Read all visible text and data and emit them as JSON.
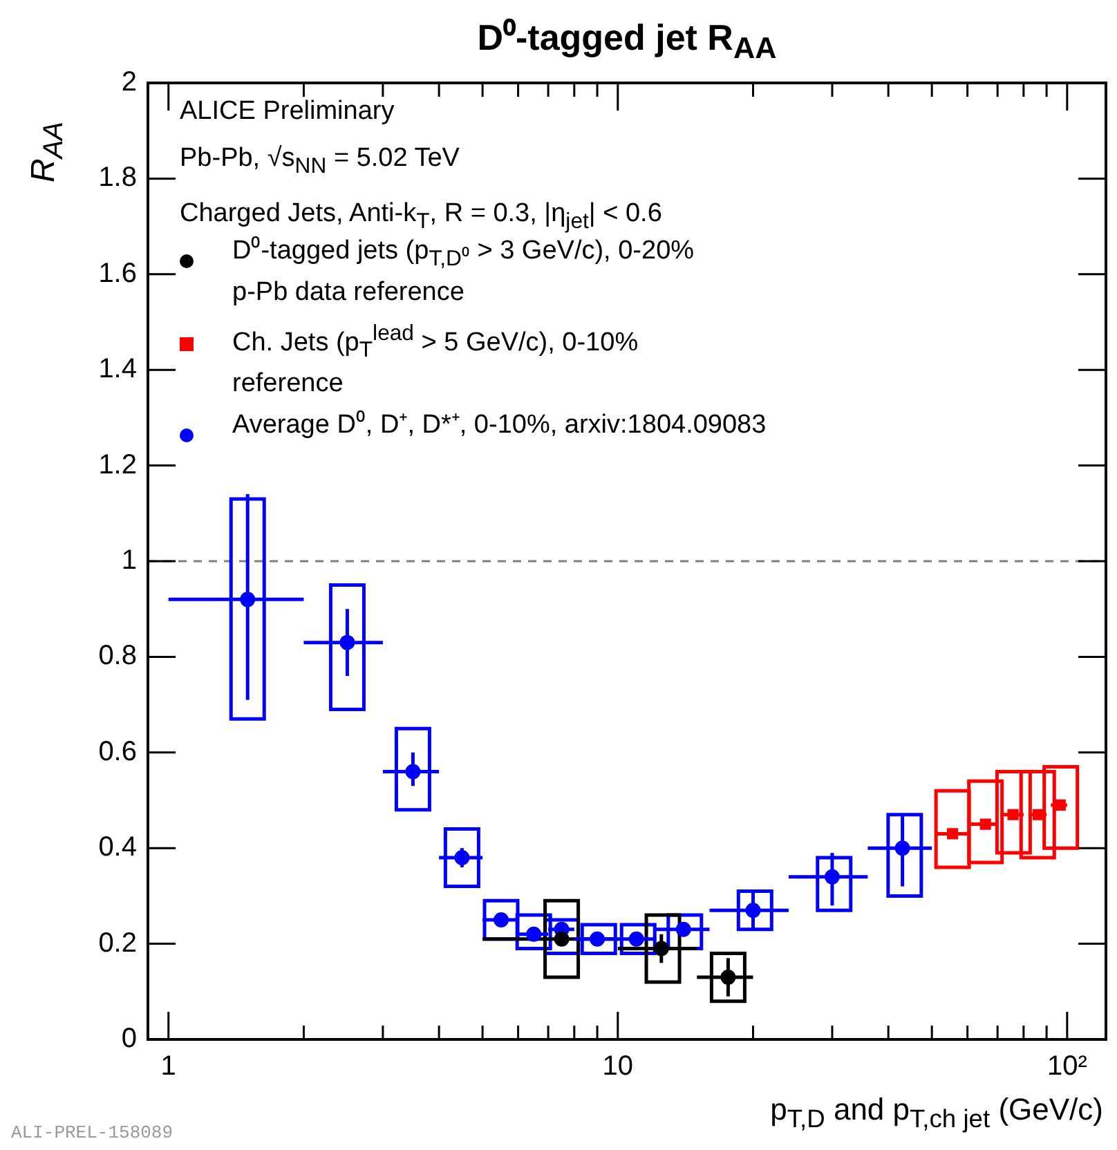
{
  "chart_data": {
    "type": "scatter",
    "title": "D⁰-tagged jet R$_{AA}$",
    "xlabel": "p$_{T,D}$ and p$_{T,ch jet}$ (GeV/c)",
    "ylabel": "R$_{AA}$",
    "annotations": [
      "ALICE Preliminary",
      "Pb-Pb, √s$_{NN}$ = 5.02 TeV",
      "Charged Jets, Anti-k$_{T}$, R = 0.3, |η$_{jet}$| < 0.6",
      "ALI-PREL-158089"
    ],
    "log": "x",
    "grid": false,
    "legend": "top left",
    "marker": "circle",
    "xlim": [
      0.9,
      122
    ],
    "xticks": [
      1,
      {
        "value": 2,
        "label": null
      },
      {
        "value": 3,
        "label": null
      },
      {
        "value": 4,
        "label": null
      },
      {
        "value": 5,
        "label": null
      },
      {
        "value": 6,
        "label": null
      },
      {
        "value": 7,
        "label": null
      },
      {
        "value": 8,
        "label": null
      },
      {
        "value": 9,
        "label": null
      },
      10,
      {
        "value": 20,
        "label": null
      },
      {
        "value": 30,
        "label": null
      },
      {
        "value": 40,
        "label": null
      },
      {
        "value": 50,
        "label": null
      },
      {
        "value": 60,
        "label": null
      },
      {
        "value": 70,
        "label": null
      },
      {
        "value": 80,
        "label": null
      },
      {
        "value": 90,
        "label": null
      },
      {
        "value": 100,
        "label": "10²"
      }
    ],
    "ylim": [
      0,
      2
    ],
    "yticks": [
      0,
      0.2,
      0.4,
      0.6,
      0.8,
      1,
      1.2,
      1.4,
      1.6,
      1.8,
      2
    ],
    "ref_lines": [
      {
        "axis": "y",
        "value": 1,
        "color": "#808080",
        "line_style": "dashed"
      }
    ],
    "series": [
      {
        "type": "bar",
        "color": "#0000ff",
        "x": [
          1.5,
          2.5,
          3.5,
          4.5,
          5.5,
          6.5,
          7.5,
          9.07,
          11.1,
          14.1,
          20.2,
          30.3,
          43.5
        ],
        "base": [
          0.67,
          0.69,
          0.48,
          0.32,
          0.21,
          0.19,
          0.18,
          0.18,
          0.18,
          0.19,
          0.23,
          0.27,
          0.3
        ],
        "values": [
          0.46,
          0.26,
          0.17,
          0.12,
          0.08,
          0.07,
          0.07,
          0.06,
          0.06,
          0.07,
          0.08,
          0.11,
          0.17
        ]
      },
      {
        "type": "bar",
        "color": "#000000",
        "x": [
          7.5,
          12.6,
          17.6
        ],
        "base": [
          0.13,
          0.12,
          0.08
        ],
        "values": [
          0.16,
          0.14,
          0.1
        ]
      },
      {
        "type": "bar",
        "color": "#ff0000",
        "x": [
          55.6,
          65.8,
          76,
          86,
          96.8
        ],
        "base": [
          0.36,
          0.37,
          0.39,
          0.38,
          0.4
        ],
        "values": [
          0.16,
          0.17,
          0.17,
          0.18,
          0.17
        ]
      },
      {
        "name": "D⁰-tagged jets (p$_{T,D⁰}$ > 3 GeV/c), 0-20%\np-Pb data reference",
        "color": "#000000",
        "x": [
          7.5,
          12.5,
          17.6
        ],
        "values": [
          0.21,
          0.19,
          0.13
        ],
        "errors": [
          null,
          [
            0.16,
            0.22
          ],
          [
            0.09,
            0.17
          ]
        ],
        "xerrors": [
          [
            5,
            10
          ],
          [
            10,
            15
          ],
          [
            15,
            20
          ]
        ]
      },
      {
        "name": "Ch. Jets (p$_{T}$$^{lead}$ > 5 GeV/c), 0-10%\nreference",
        "color": "#ff0000",
        "marker": "square",
        "x": [
          55.6,
          65.8,
          75.8,
          86.2,
          96.5
        ],
        "values": [
          0.43,
          0.45,
          0.47,
          0.47,
          0.49
        ],
        "xerrors": [
          [
            51,
            60
          ],
          [
            61,
            70
          ],
          [
            71,
            80
          ],
          [
            82,
            90
          ],
          [
            92,
            100
          ]
        ]
      },
      {
        "name": "Average D⁰, D⁺, D*⁺, 0-10%, arxiv:1804.09083",
        "color": "#0000ff",
        "x": [
          1.5,
          2.5,
          3.5,
          4.5,
          5.5,
          6.5,
          7.5,
          9,
          11,
          14,
          20,
          30,
          43
        ],
        "values": [
          0.92,
          0.83,
          0.56,
          0.38,
          0.25,
          0.22,
          0.23,
          0.21,
          0.21,
          0.23,
          0.27,
          0.34,
          0.4
        ],
        "errors": [
          [
            0.71,
            1.14
          ],
          [
            0.76,
            0.9
          ],
          [
            0.53,
            0.6
          ],
          [
            0.36,
            0.4
          ],
          null,
          null,
          null,
          null,
          null,
          null,
          [
            0.23,
            0.31
          ],
          [
            0.28,
            0.39
          ],
          [
            0.32,
            0.47
          ]
        ],
        "xerrors": [
          [
            1,
            2
          ],
          [
            2,
            3
          ],
          [
            3,
            4
          ],
          [
            4,
            5
          ],
          [
            5,
            6
          ],
          [
            6,
            7
          ],
          [
            7,
            8
          ],
          [
            8,
            10
          ],
          [
            10,
            12
          ],
          [
            12,
            16
          ],
          [
            16,
            24
          ],
          [
            24,
            36
          ],
          [
            36,
            50
          ]
        ]
      }
    ]
  }
}
